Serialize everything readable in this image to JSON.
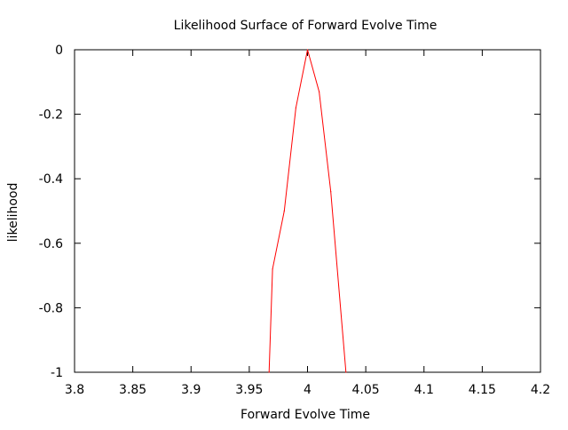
{
  "chart_data": {
    "type": "line",
    "title": "Likelihood Surface of Forward Evolve Time",
    "xlabel": "Forward Evolve Time",
    "ylabel": "likelihood",
    "xlim": [
      3.8,
      4.2
    ],
    "ylim": [
      -1,
      0
    ],
    "xticks": [
      3.8,
      3.85,
      3.9,
      3.95,
      4.0,
      4.05,
      4.1,
      4.15,
      4.2
    ],
    "xtick_labels": [
      "3.8",
      "3.85",
      "3.9",
      "3.95",
      "4",
      "4.05",
      "4.1",
      "4.15",
      "4.2"
    ],
    "yticks": [
      0,
      -0.2,
      -0.4,
      -0.6,
      -0.8,
      -1
    ],
    "ytick_labels": [
      "0",
      "-0.2",
      "-0.4",
      "-0.6",
      "-0.8",
      "-1"
    ],
    "grid": false,
    "series": [
      {
        "color": "#ff0000",
        "x": [
          3.967,
          3.97,
          3.98,
          3.99,
          4.0,
          4.01,
          4.02,
          4.033
        ],
        "y": [
          -1.0,
          -0.68,
          -0.5,
          -0.18,
          0.0,
          -0.13,
          -0.44,
          -1.0
        ]
      }
    ]
  }
}
